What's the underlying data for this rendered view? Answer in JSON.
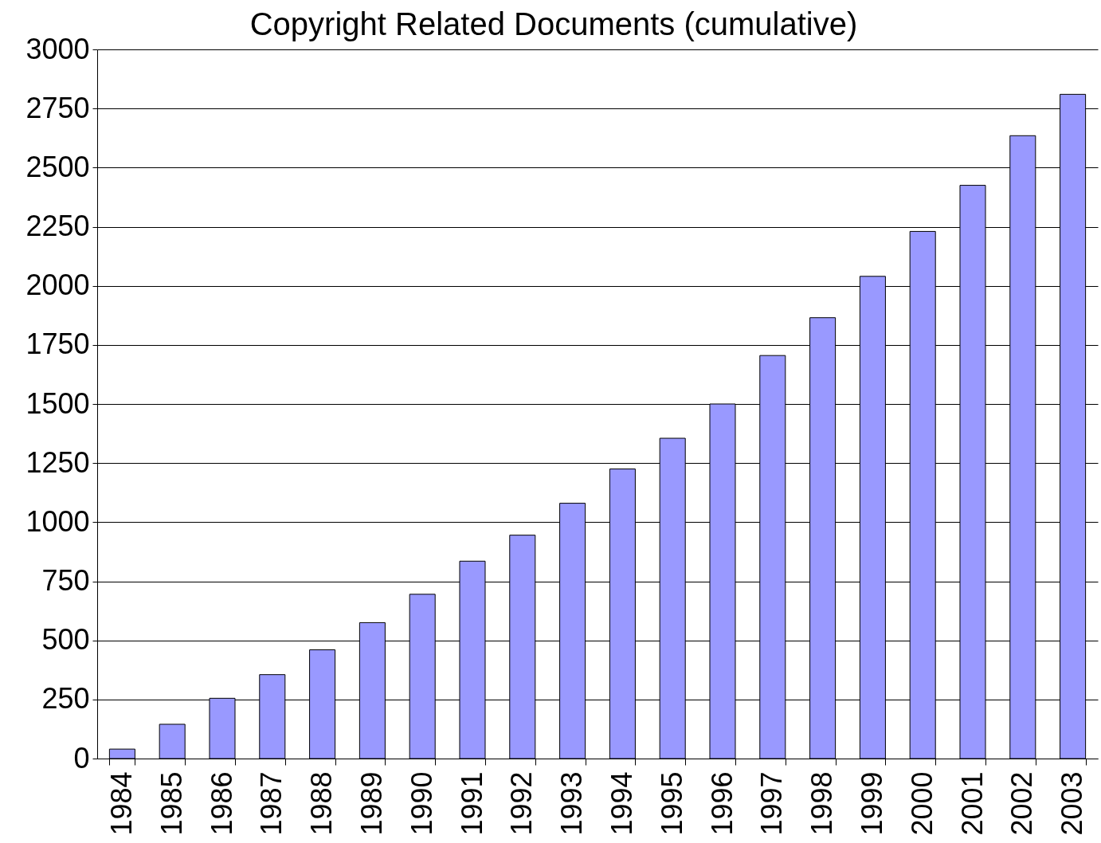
{
  "chart_data": {
    "type": "bar",
    "title": "Copyright Related Documents (cumulative)",
    "categories": [
      "1984",
      "1985",
      "1986",
      "1987",
      "1988",
      "1989",
      "1990",
      "1991",
      "1992",
      "1993",
      "1994",
      "1995",
      "1996",
      "1997",
      "1998",
      "1999",
      "2000",
      "2001",
      "2002",
      "2003"
    ],
    "values": [
      40,
      145,
      255,
      355,
      460,
      575,
      695,
      835,
      945,
      1080,
      1225,
      1355,
      1500,
      1705,
      1865,
      2040,
      2230,
      2425,
      2635,
      2810
    ],
    "color": "#9999ff",
    "ylim": [
      0,
      3000
    ],
    "yticks": [
      0,
      250,
      500,
      750,
      1000,
      1250,
      1500,
      1750,
      2000,
      2250,
      2500,
      2750,
      3000
    ],
    "grid": "y"
  }
}
